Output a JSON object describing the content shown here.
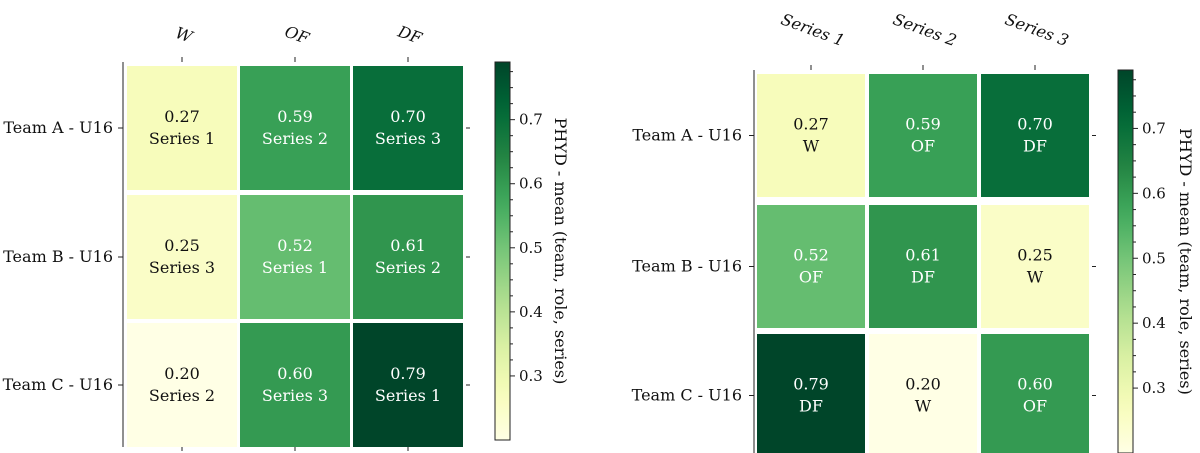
{
  "chart_data": [
    {
      "type": "heatmap",
      "title": "",
      "columns": [
        "W",
        "OF",
        "DF"
      ],
      "rows": [
        "Team A - U16",
        "Team B - U16",
        "Team C - U16"
      ],
      "cells": [
        [
          {
            "value": 0.27,
            "label": "Series 1"
          },
          {
            "value": 0.59,
            "label": "Series 2"
          },
          {
            "value": 0.7,
            "label": "Series 3"
          }
        ],
        [
          {
            "value": 0.25,
            "label": "Series 3"
          },
          {
            "value": 0.52,
            "label": "Series 1"
          },
          {
            "value": 0.61,
            "label": "Series 2"
          }
        ],
        [
          {
            "value": 0.2,
            "label": "Series 2"
          },
          {
            "value": 0.6,
            "label": "Series 3"
          },
          {
            "value": 0.79,
            "label": "Series 1"
          }
        ]
      ],
      "colorbar": {
        "label": "PHYD - mean (team, role, series)",
        "ticks": [
          0.3,
          0.4,
          0.5,
          0.6,
          0.7
        ],
        "range": [
          0.2,
          0.79
        ],
        "colormap": "YlGn"
      }
    },
    {
      "type": "heatmap",
      "title": "",
      "columns": [
        "Series 1",
        "Series 2",
        "Series 3"
      ],
      "rows": [
        "Team A - U16",
        "Team B - U16",
        "Team C - U16"
      ],
      "cells": [
        [
          {
            "value": 0.27,
            "label": "W"
          },
          {
            "value": 0.59,
            "label": "OF"
          },
          {
            "value": 0.7,
            "label": "DF"
          }
        ],
        [
          {
            "value": 0.52,
            "label": "OF"
          },
          {
            "value": 0.61,
            "label": "DF"
          },
          {
            "value": 0.25,
            "label": "W"
          }
        ],
        [
          {
            "value": 0.79,
            "label": "DF"
          },
          {
            "value": 0.2,
            "label": "W"
          },
          {
            "value": 0.6,
            "label": "OF"
          }
        ]
      ],
      "colorbar": {
        "label": "PHYD - mean (team, role, series)",
        "ticks": [
          0.3,
          0.4,
          0.5,
          0.6,
          0.7
        ],
        "range": [
          0.2,
          0.79
        ],
        "colormap": "YlGn"
      }
    }
  ]
}
